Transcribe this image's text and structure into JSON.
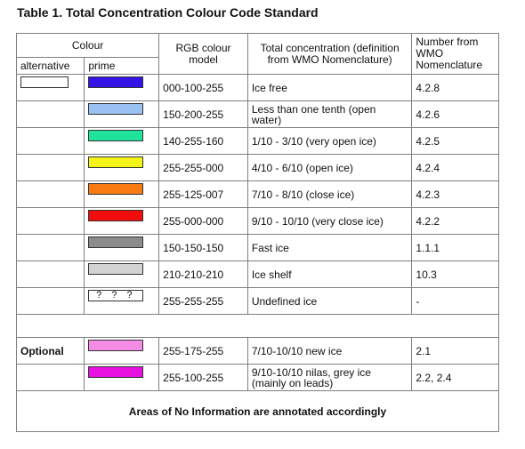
{
  "title": "Table 1. Total Concentration Colour Code Standard",
  "headers": {
    "colour": "Colour",
    "alternative": "alternative",
    "prime": "prime",
    "rgb": "RGB colour model",
    "concentration": "Total concentration (definition from WMO Nomenclature)",
    "number": "Number from WMO Nomenclature"
  },
  "rows": [
    {
      "color": "#3413e6",
      "rgb": "000-100-255",
      "concentration": "Ice free",
      "number": "4.2.8",
      "alt": true
    },
    {
      "color": "#99c2f2",
      "rgb": "150-200-255",
      "concentration": "Less than one tenth (open water)",
      "number": "4.2.6"
    },
    {
      "color": "#1fe39a",
      "rgb": "140-255-160",
      "concentration": "1/10 - 3/10 (very open ice)",
      "number": "4.2.5"
    },
    {
      "color": "#f4f419",
      "rgb": "255-255-000",
      "concentration": "4/10 - 6/10 (open ice)",
      "number": "4.2.4"
    },
    {
      "color": "#fa7a12",
      "rgb": "255-125-007",
      "concentration": "7/10 - 8/10 (close ice)",
      "number": "4.2.3"
    },
    {
      "color": "#f20d0d",
      "rgb": "255-000-000",
      "concentration": "9/10 - 10/10 (very close ice)",
      "number": "4.2.2"
    },
    {
      "color": "#8c8c8c",
      "rgb": "150-150-150",
      "concentration": "Fast ice",
      "number": "1.1.1"
    },
    {
      "color": "#d3d3d3",
      "rgb": "210-210-210",
      "concentration": "Ice shelf",
      "number": "10.3"
    },
    {
      "color": "#ffffff",
      "rgb": "255-255-255",
      "concentration": "Undefined ice",
      "number": "-",
      "swatch_text": "? ? ?"
    }
  ],
  "optional_label": "Optional",
  "optional_rows": [
    {
      "color": "#f48ce6",
      "rgb": "255-175-255",
      "concentration": "7/10-10/10 new ice",
      "number": "2.1"
    },
    {
      "color": "#e810e0",
      "rgb": "255-100-255",
      "concentration": "9/10-10/10 nilas, grey ice (mainly on leads)",
      "number": "2.2, 2.4"
    }
  ],
  "footer": "Areas of No Information are annotated accordingly"
}
